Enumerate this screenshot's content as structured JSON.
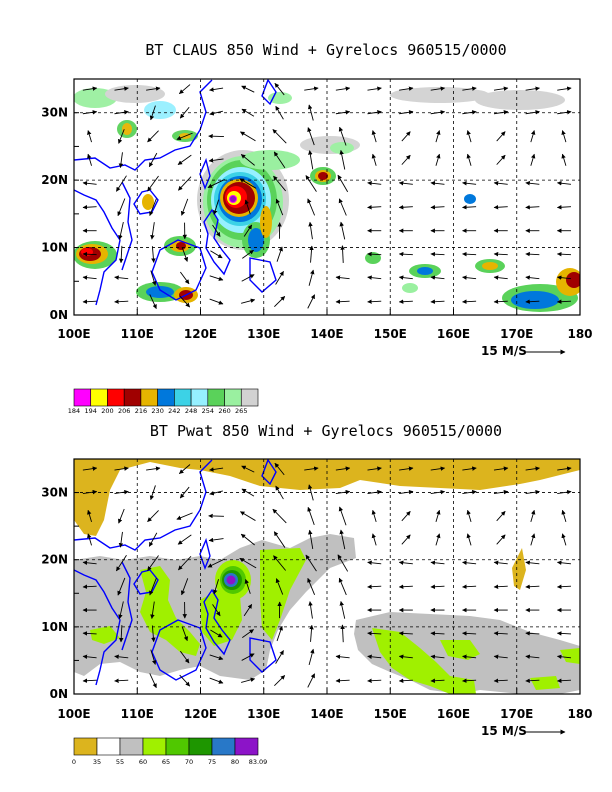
{
  "chart_data": [
    {
      "type": "heatmap",
      "title": "BT CLAUS 850 Wind + Gyrelocs 960515/0000",
      "x_ticks": [
        "100E",
        "110E",
        "120E",
        "130E",
        "140E",
        "150E",
        "160E",
        "170E",
        "180"
      ],
      "y_ticks": [
        "0N",
        "10N",
        "20N",
        "30N"
      ],
      "xlim": [
        100,
        180
      ],
      "ylim": [
        0,
        35
      ],
      "grid": true,
      "wind_reference": "15 M/S",
      "colorbar": {
        "labels": [
          "184",
          "194",
          "200",
          "206",
          "216",
          "230",
          "242",
          "248",
          "254",
          "260",
          "265"
        ],
        "colors": [
          "#ff00ff",
          "#ffff00",
          "#ff0000",
          "#a00000",
          "#e6b400",
          "#0078dc",
          "#3cd2e6",
          "#96f0ff",
          "#5ad25a",
          "#9af0a0",
          "#d2d2d2"
        ]
      },
      "features": [
        {
          "name": "typhoon",
          "lon": 125,
          "lat": 17
        },
        {
          "name": "cloud",
          "lon": 139.5,
          "lat": 21
        },
        {
          "name": "cloud",
          "lon": 118,
          "lat": 10
        },
        {
          "name": "cloud",
          "lon": 102,
          "lat": 9.5
        },
        {
          "name": "cloud",
          "lon": 177,
          "lat": 3
        }
      ]
    },
    {
      "type": "heatmap",
      "title": "BT Pwat 850 Wind + Gyrelocs 960515/0000",
      "x_ticks": [
        "100E",
        "110E",
        "120E",
        "130E",
        "140E",
        "150E",
        "160E",
        "170E",
        "180"
      ],
      "y_ticks": [
        "0N",
        "10N",
        "20N",
        "30N"
      ],
      "xlim": [
        100,
        180
      ],
      "ylim": [
        0,
        35
      ],
      "grid": true,
      "wind_reference": "15 M/S",
      "colorbar": {
        "labels": [
          "0",
          "35",
          "55",
          "60",
          "65",
          "70",
          "75",
          "80",
          "83.09"
        ],
        "colors": [
          "#dcb41e",
          "#ffffff",
          "#c0c0c0",
          "#a0f000",
          "#50c800",
          "#1e9600",
          "#2878c8",
          "#8c14c8"
        ]
      },
      "features": [
        {
          "name": "typhoon",
          "lon": 125,
          "lat": 17
        },
        {
          "name": "moist-band",
          "lon": 160,
          "lat": 7
        }
      ]
    }
  ]
}
